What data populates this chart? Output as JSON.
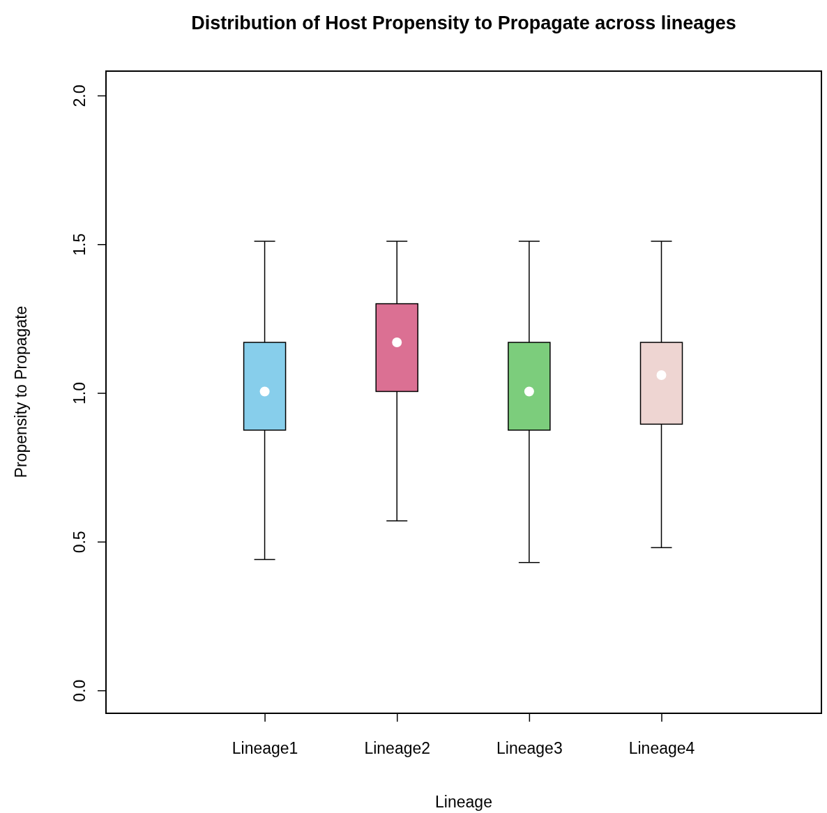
{
  "chart_data": {
    "type": "box",
    "title": "Distribution of Host Propensity to Propagate across lineages",
    "xlabel": "Lineage",
    "ylabel": "Propensity to Propagate",
    "categories": [
      "Lineage1",
      "Lineage2",
      "Lineage3",
      "Lineage4"
    ],
    "colors": [
      "#87ceeb",
      "#db7093",
      "#7ccd7c",
      "#eed5d2"
    ],
    "boxes": [
      {
        "low": 0.44,
        "q1": 0.875,
        "median": 1.005,
        "q3": 1.17,
        "high": 1.51
      },
      {
        "low": 0.57,
        "q1": 1.005,
        "median": 1.17,
        "q3": 1.3,
        "high": 1.51
      },
      {
        "low": 0.43,
        "q1": 0.875,
        "median": 1.005,
        "q3": 1.17,
        "high": 1.51
      },
      {
        "low": 0.48,
        "q1": 0.895,
        "median": 1.06,
        "q3": 1.17,
        "high": 1.51
      }
    ],
    "ylim": [
      -0.077,
      2.082
    ],
    "yticks": [
      {
        "value": 0,
        "label": "0.0"
      },
      {
        "value": 0.5,
        "label": "0.5"
      },
      {
        "value": 1,
        "label": "1.0"
      },
      {
        "value": 1.5,
        "label": "1.5"
      },
      {
        "value": 2,
        "label": "2.0"
      }
    ],
    "grid": false
  }
}
